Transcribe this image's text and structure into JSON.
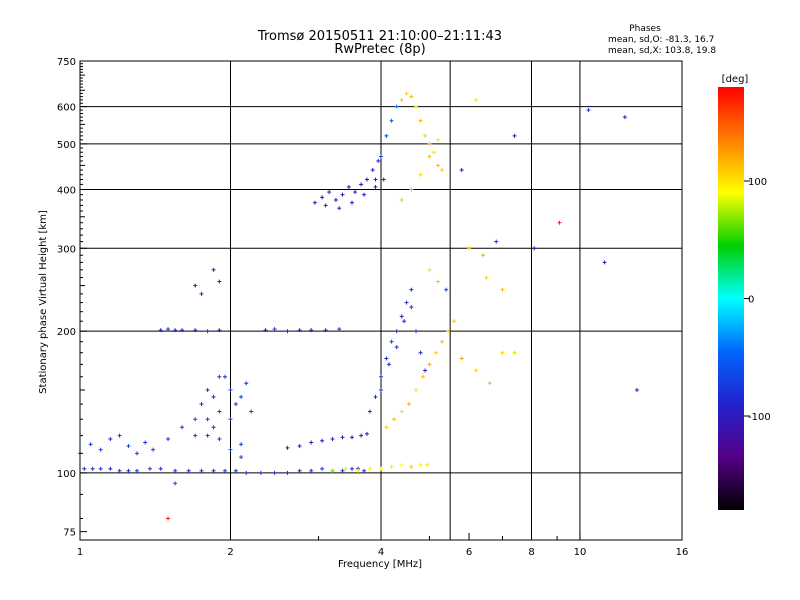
{
  "chart_data": {
    "type": "scatter",
    "title": "Tromsø 20150511 21:10:00–21:11:43",
    "subtitle": "RwPretec (8p)",
    "stats": {
      "heading": "Phases",
      "line1": "mean, sd,O: -81.3, 16.7",
      "line2": "mean, sd,X: 103.8, 19.8"
    },
    "xlabel": "Frequency [MHz]",
    "ylabel": "Stationary phase Virtual Height [km]",
    "x_scale": "log",
    "y_scale": "log",
    "xlim": [
      1,
      16
    ],
    "ylim": [
      72,
      750
    ],
    "x_ticks": [
      1,
      2,
      4,
      6,
      8,
      10,
      16
    ],
    "x_tick_labels": [
      "1",
      "2",
      "4",
      "6",
      "8",
      "10",
      "16"
    ],
    "x_grid": [
      2,
      4,
      5.5,
      8,
      10
    ],
    "x_minor": [
      3,
      5,
      7,
      9
    ],
    "y_ticks": [
      75,
      100,
      200,
      300,
      400,
      500,
      600,
      750
    ],
    "y_tick_labels": [
      "75",
      "100",
      "200",
      "300",
      "400",
      "500",
      "600",
      "750"
    ],
    "y_grid": [
      100,
      200,
      300,
      400,
      500,
      600
    ],
    "grid": true,
    "colorbar": {
      "label": "[deg]",
      "range": [
        -180,
        180
      ],
      "ticks": [
        100,
        0,
        -100
      ],
      "tick_labels": [
        "100",
        "0",
        "-100"
      ],
      "stops": [
        "#ff0000",
        "#ff8000",
        "#ffff00",
        "#00d000",
        "#00ffff",
        "#0066ff",
        "#2222cc",
        "#550088",
        "#000000"
      ]
    },
    "series": [
      {
        "x": [
          1.02,
          1.06,
          1.1,
          1.15,
          1.2,
          1.25,
          1.3,
          1.38,
          1.45,
          1.55,
          1.65,
          1.75,
          1.85,
          1.95,
          2.05,
          2.15,
          2.3,
          2.45,
          2.6,
          2.75,
          2.9,
          3.05,
          3.2,
          3.35,
          3.5,
          3.6,
          3.7
        ],
        "y": [
          102,
          102,
          102,
          102,
          101,
          101,
          101,
          102,
          102,
          101,
          101,
          101,
          101,
          101,
          101,
          100,
          100,
          100,
          100,
          101,
          101,
          102,
          101,
          101,
          102,
          102,
          101
        ],
        "phase": [
          -90,
          -85,
          -80,
          -88,
          -82,
          -85,
          -80,
          -84,
          -86,
          -82,
          -85,
          -80,
          -88,
          -84,
          -82,
          -85,
          -80,
          -84,
          -86,
          -82,
          -85,
          -80,
          -88,
          -82,
          -85,
          -80,
          -84
        ]
      },
      {
        "x": [
          1.0,
          1.05,
          1.1,
          1.15,
          1.2,
          1.25,
          1.3,
          1.35,
          1.4,
          1.5,
          1.6,
          1.7,
          1.8,
          1.9,
          2.0,
          2.1
        ],
        "y": [
          110,
          115,
          112,
          118,
          120,
          114,
          110,
          116,
          112,
          118,
          125,
          120,
          130,
          118,
          112,
          108
        ],
        "phase": [
          -70,
          -75,
          -72,
          -80,
          -76,
          -70,
          -74,
          -78,
          -72,
          -75,
          -70,
          -76,
          -74,
          -80,
          -72,
          -70
        ]
      },
      {
        "x": [
          1.7,
          1.75,
          1.8,
          1.85,
          1.9,
          1.95,
          2.0,
          2.05,
          2.1,
          2.15,
          2.2,
          1.8,
          1.85,
          1.9,
          2.0,
          2.1
        ],
        "y": [
          130,
          140,
          150,
          145,
          135,
          160,
          150,
          140,
          145,
          155,
          135,
          120,
          125,
          160,
          130,
          115
        ],
        "phase": [
          -75,
          -78,
          -72,
          -80,
          -70,
          -76,
          -74,
          -82,
          -72,
          -78,
          -70,
          -80,
          -75,
          -72,
          -76,
          -74
        ]
      },
      {
        "x": [
          1.45,
          1.5,
          1.55,
          1.6,
          1.7,
          1.8,
          1.9,
          2.35,
          2.45,
          2.6,
          2.75,
          2.9,
          3.1,
          3.3
        ],
        "y": [
          201,
          202,
          201,
          201,
          201,
          200,
          201,
          201,
          202,
          200,
          201,
          201,
          201,
          202
        ],
        "phase": [
          -80,
          -84,
          -82,
          -86,
          -80,
          -84,
          -82,
          -86,
          -80,
          -84,
          -82,
          -86,
          -80,
          -84
        ]
      },
      {
        "x": [
          2.6,
          2.75,
          2.9,
          3.05,
          3.2,
          3.35,
          3.5,
          3.65,
          3.75
        ],
        "y": [
          113,
          114,
          116,
          117,
          118,
          119,
          119,
          120,
          121
        ],
        "phase": [
          -95,
          -100,
          -98,
          -102,
          -96,
          -100,
          -98,
          -104,
          -96
        ]
      },
      {
        "x": [
          3.2,
          3.4,
          3.6,
          3.8,
          4.0,
          4.2,
          4.4,
          4.6,
          4.8,
          4.95
        ],
        "y": [
          101,
          102,
          101,
          102,
          102,
          103,
          104,
          103,
          104,
          104
        ],
        "phase": [
          70,
          80,
          90,
          85,
          95,
          100,
          90,
          110,
          95,
          100
        ]
      },
      {
        "x": [
          3.8,
          3.9,
          4.0,
          4.1,
          4.2,
          4.3,
          4.4,
          4.5,
          4.6,
          4.7,
          4.8,
          4.9,
          4.0,
          4.15,
          4.3,
          4.45,
          4.6
        ],
        "y": [
          135,
          145,
          160,
          175,
          190,
          200,
          215,
          230,
          245,
          200,
          180,
          165,
          150,
          170,
          185,
          210,
          225
        ],
        "phase": [
          -80,
          -85,
          -75,
          -90,
          -70,
          -82,
          -95,
          -78,
          -88,
          -72,
          -84,
          -90,
          -76,
          -86,
          -80,
          -92,
          -74
        ]
      },
      {
        "x": [
          4.1,
          4.25,
          4.4,
          4.55,
          4.7,
          4.85,
          5.0,
          5.15,
          5.3,
          5.45,
          5.6,
          5.8,
          6.2,
          6.6,
          7.0,
          7.4
        ],
        "y": [
          125,
          130,
          135,
          140,
          150,
          160,
          170,
          180,
          190,
          200,
          210,
          175,
          165,
          155,
          180,
          180
        ],
        "phase": [
          110,
          115,
          105,
          120,
          100,
          112,
          118,
          108,
          115,
          102,
          110,
          120,
          105,
          115,
          108,
          80
        ]
      },
      {
        "x": [
          2.95,
          3.05,
          3.15,
          3.25,
          3.35,
          3.45,
          3.55,
          3.65,
          3.75,
          3.85,
          3.95,
          4.05,
          3.1,
          3.3,
          3.5,
          3.7,
          3.9
        ],
        "y": [
          375,
          385,
          395,
          380,
          390,
          405,
          395,
          410,
          420,
          440,
          460,
          420,
          370,
          365,
          375,
          390,
          405
        ],
        "phase": [
          -100,
          -105,
          -98,
          -110,
          -102,
          -108,
          -95,
          -104,
          -100,
          -96,
          -92,
          -90,
          -106,
          -100,
          -104,
          -98,
          -94
        ]
      },
      {
        "x": [
          3.9,
          4.0,
          4.1,
          4.2,
          4.3,
          4.4,
          4.5,
          4.6,
          4.7,
          4.8,
          4.9,
          5.0,
          5.1,
          5.2,
          5.3,
          4.4,
          4.6,
          4.8,
          5.0,
          5.2
        ],
        "y": [
          420,
          470,
          520,
          560,
          600,
          620,
          640,
          630,
          600,
          560,
          520,
          500,
          480,
          450,
          440,
          380,
          400,
          430,
          470,
          510
        ],
        "phase": [
          -80,
          -70,
          -60,
          -50,
          -40,
          110,
          105,
          115,
          100,
          118,
          108,
          112,
          102,
          115,
          106,
          110,
          120,
          104,
          112,
          100
        ]
      },
      {
        "x": [
          5.8,
          6.2,
          7.4,
          8.1,
          9.1,
          10.4,
          11.2,
          12.3,
          13.0
        ],
        "y": [
          440,
          620,
          520,
          300,
          340,
          590,
          280,
          570,
          150
        ],
        "phase": [
          -90,
          100,
          -100,
          -110,
          170,
          -80,
          -90,
          -100,
          -95
        ]
      },
      {
        "x": [
          1.85,
          1.9,
          1.7,
          1.75,
          1.5,
          1.55,
          5.0,
          5.2,
          5.4,
          6.0,
          6.4,
          6.8,
          6.5,
          7.0
        ],
        "y": [
          270,
          255,
          250,
          240,
          80,
          95,
          270,
          255,
          245,
          300,
          290,
          310,
          260,
          245
        ],
        "phase": [
          -90,
          -85,
          -95,
          -80,
          170,
          -60,
          100,
          110,
          -70,
          110,
          120,
          -80,
          105,
          115
        ]
      }
    ]
  }
}
